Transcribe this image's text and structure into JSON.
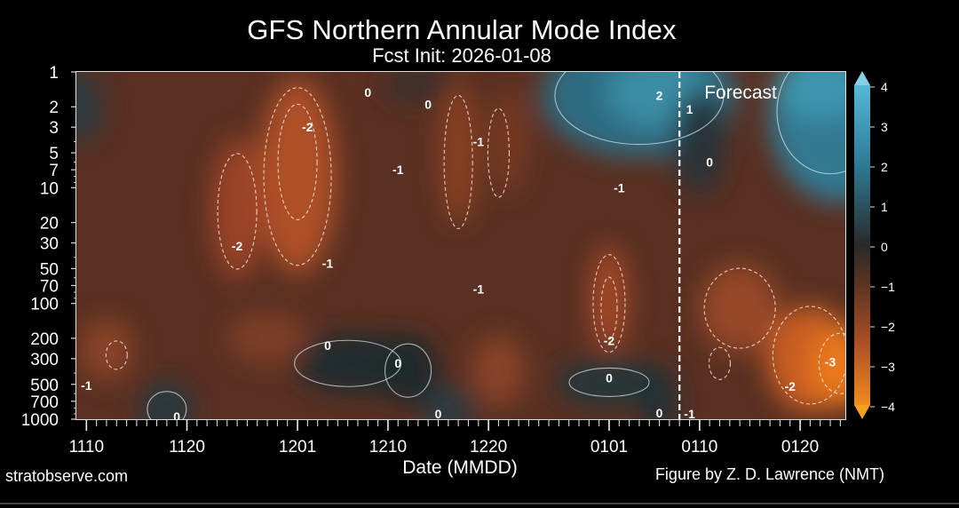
{
  "chart_data": {
    "type": "heatmap",
    "title": "GFS Northern Annular Mode Index",
    "subtitle": "Fcst Init: 2026-01-08",
    "xlabel": "Date (MMDD)",
    "ylabel": "",
    "x_ticks": [
      "1110",
      "1120",
      "1201",
      "1210",
      "1220",
      "0101",
      "0110",
      "0120"
    ],
    "y_ticks": [
      1,
      2,
      3,
      5,
      7,
      10,
      20,
      30,
      50,
      70,
      100,
      200,
      300,
      500,
      700,
      1000
    ],
    "y_scale": "log",
    "y_reversed": true,
    "ylim": [
      1000,
      1
    ],
    "forecast_label": "Forecast",
    "forecast_start": "0108",
    "colorbar": {
      "ticks": [
        4,
        3,
        2,
        1,
        0,
        -1,
        -2,
        -3,
        -4
      ],
      "tick_labels": [
        "4",
        "3",
        "2",
        "1",
        "0",
        "−1",
        "−2",
        "−3",
        "−4"
      ],
      "range": [
        -4,
        4
      ],
      "positive_color": "#2f90ad",
      "negative_color": "#e8751f"
    },
    "contour_labels": [
      {
        "text": "0",
        "date": "1208",
        "p": 1.5
      },
      {
        "text": "0",
        "date": "1214",
        "p": 1.9
      },
      {
        "text": "-2",
        "date": "1202",
        "p": 3
      },
      {
        "text": "-1",
        "date": "1219",
        "p": 4
      },
      {
        "text": "-1",
        "date": "1211",
        "p": 7
      },
      {
        "text": "2",
        "date": "0106",
        "p": 1.6
      },
      {
        "text": "1",
        "date": "0109",
        "p": 2.1
      },
      {
        "text": "0",
        "date": "0111",
        "p": 6
      },
      {
        "text": "-1",
        "date": "0102",
        "p": 10
      },
      {
        "text": "-2",
        "date": "1125",
        "p": 32
      },
      {
        "text": "-1",
        "date": "1204",
        "p": 45
      },
      {
        "text": "-1",
        "date": "1219",
        "p": 75
      },
      {
        "text": "0",
        "date": "1204",
        "p": 230
      },
      {
        "text": "-2",
        "date": "0101",
        "p": 210
      },
      {
        "text": "0",
        "date": "1211",
        "p": 330
      },
      {
        "text": "0",
        "date": "0101",
        "p": 440
      },
      {
        "text": "-3",
        "date": "0123",
        "p": 320
      },
      {
        "text": "-2",
        "date": "0119",
        "p": 520
      },
      {
        "text": "0",
        "date": "1119",
        "p": 950
      },
      {
        "text": "0",
        "date": "1215",
        "p": 900
      },
      {
        "text": "0",
        "date": "0106",
        "p": 880
      },
      {
        "text": "-1",
        "date": "1110",
        "p": 510
      },
      {
        "text": "-1",
        "date": "0109",
        "p": 900
      }
    ]
  },
  "credits": {
    "left": "stratobserve.com",
    "right": "Figure by Z. D. Lawrence (NMT)"
  }
}
